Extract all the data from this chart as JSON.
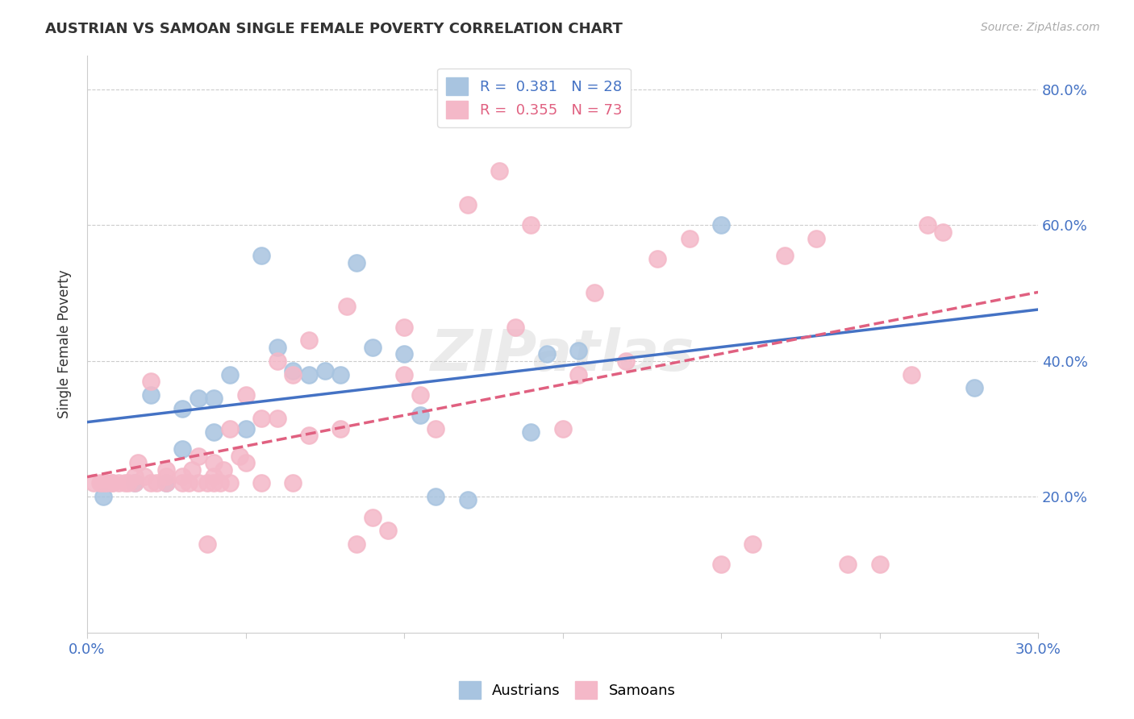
{
  "title": "AUSTRIAN VS SAMOAN SINGLE FEMALE POVERTY CORRELATION CHART",
  "source": "Source: ZipAtlas.com",
  "ylabel": "Single Female Poverty",
  "xmin": 0.0,
  "xmax": 0.3,
  "ymin": 0.0,
  "ymax": 0.85,
  "yticks": [
    0.2,
    0.4,
    0.6,
    0.8
  ],
  "ytick_labels": [
    "20.0%",
    "40.0%",
    "60.0%",
    "80.0%"
  ],
  "legend_r_austrians": "0.381",
  "legend_n_austrians": "28",
  "legend_r_samoans": "0.355",
  "legend_n_samoans": "73",
  "austrian_color": "#a8c4e0",
  "samoan_color": "#f4b8c8",
  "austrian_line_color": "#4472c4",
  "samoan_line_color": "#e06080",
  "watermark": "ZIPatlas",
  "austrians_x": [
    0.005,
    0.015,
    0.02,
    0.025,
    0.03,
    0.03,
    0.035,
    0.04,
    0.04,
    0.045,
    0.05,
    0.055,
    0.06,
    0.065,
    0.07,
    0.075,
    0.08,
    0.085,
    0.09,
    0.1,
    0.105,
    0.11,
    0.12,
    0.14,
    0.145,
    0.155,
    0.2,
    0.28
  ],
  "austrians_y": [
    0.2,
    0.22,
    0.35,
    0.22,
    0.33,
    0.27,
    0.345,
    0.345,
    0.295,
    0.38,
    0.3,
    0.555,
    0.42,
    0.385,
    0.38,
    0.385,
    0.38,
    0.545,
    0.42,
    0.41,
    0.32,
    0.2,
    0.195,
    0.295,
    0.41,
    0.415,
    0.6,
    0.36
  ],
  "samoans_x": [
    0.002,
    0.004,
    0.005,
    0.006,
    0.008,
    0.008,
    0.01,
    0.012,
    0.013,
    0.015,
    0.015,
    0.016,
    0.018,
    0.02,
    0.02,
    0.022,
    0.025,
    0.025,
    0.025,
    0.03,
    0.03,
    0.032,
    0.033,
    0.035,
    0.035,
    0.038,
    0.038,
    0.04,
    0.04,
    0.04,
    0.042,
    0.043,
    0.045,
    0.045,
    0.048,
    0.05,
    0.05,
    0.055,
    0.055,
    0.06,
    0.06,
    0.065,
    0.065,
    0.07,
    0.07,
    0.08,
    0.082,
    0.085,
    0.09,
    0.095,
    0.1,
    0.1,
    0.105,
    0.11,
    0.12,
    0.13,
    0.135,
    0.14,
    0.15,
    0.155,
    0.16,
    0.17,
    0.18,
    0.19,
    0.2,
    0.21,
    0.22,
    0.23,
    0.24,
    0.25,
    0.26,
    0.265,
    0.27
  ],
  "samoans_y": [
    0.22,
    0.22,
    0.22,
    0.22,
    0.22,
    0.22,
    0.22,
    0.22,
    0.22,
    0.22,
    0.23,
    0.25,
    0.23,
    0.22,
    0.37,
    0.22,
    0.22,
    0.23,
    0.24,
    0.22,
    0.23,
    0.22,
    0.24,
    0.26,
    0.22,
    0.13,
    0.22,
    0.22,
    0.23,
    0.25,
    0.22,
    0.24,
    0.22,
    0.3,
    0.26,
    0.35,
    0.25,
    0.315,
    0.22,
    0.315,
    0.4,
    0.38,
    0.22,
    0.43,
    0.29,
    0.3,
    0.48,
    0.13,
    0.17,
    0.15,
    0.38,
    0.45,
    0.35,
    0.3,
    0.63,
    0.68,
    0.45,
    0.6,
    0.3,
    0.38,
    0.5,
    0.4,
    0.55,
    0.58,
    0.1,
    0.13,
    0.555,
    0.58,
    0.1,
    0.1,
    0.38,
    0.6,
    0.59
  ]
}
